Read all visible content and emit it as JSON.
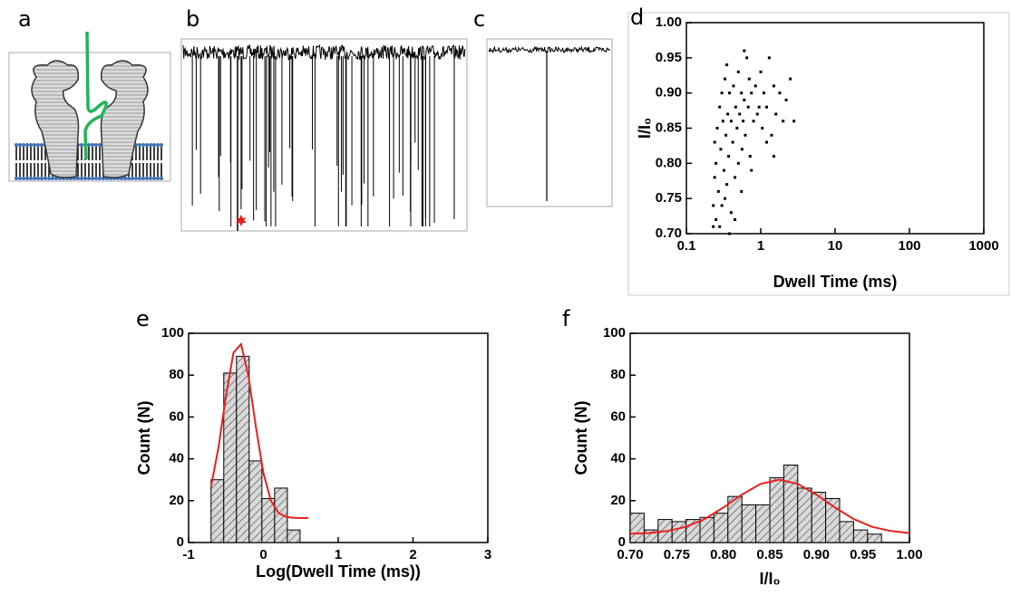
{
  "figure": {
    "labels": [
      "a",
      "b",
      "c",
      "d",
      "e",
      "f"
    ]
  },
  "chart_data": [
    {
      "type": "scatter",
      "xlabel": "Dwell Time (ms)",
      "ylabel": "I/I₀",
      "color": "#000000",
      "xlog": true,
      "xlim": [
        0.1,
        1000
      ],
      "xticks": [
        0.1,
        1,
        10,
        100,
        1000
      ],
      "ylim": [
        0.7,
        1.0
      ],
      "yticks": [
        {
          "value": 0.7,
          "label": "0.70"
        },
        {
          "value": 0.75,
          "label": "0.75"
        },
        {
          "value": 0.8,
          "label": "0.80"
        },
        {
          "value": 0.85,
          "label": "0.85"
        },
        {
          "value": 0.9,
          "label": "0.90"
        },
        {
          "value": 0.95,
          "label": "0.95"
        },
        {
          "value": 1.0,
          "label": "1.00"
        }
      ],
      "x": [
        0.23,
        0.23,
        0.24,
        0.24,
        0.25,
        0.25,
        0.26,
        0.27,
        0.28,
        0.28,
        0.29,
        0.3,
        0.3,
        0.31,
        0.32,
        0.33,
        0.34,
        0.35,
        0.35,
        0.36,
        0.37,
        0.38,
        0.4,
        0.4,
        0.42,
        0.43,
        0.45,
        0.46,
        0.48,
        0.5,
        0.5,
        0.52,
        0.55,
        0.56,
        0.58,
        0.6,
        0.62,
        0.65,
        0.68,
        0.7,
        0.72,
        0.75,
        0.8,
        0.85,
        0.9,
        0.95,
        1.0,
        1.05,
        1.1,
        1.2,
        1.3,
        1.4,
        1.5,
        1.6,
        1.8,
        2.0,
        2.2,
        2.5,
        2.8,
        0.33,
        0.38,
        0.45,
        0.55,
        0.6,
        0.75,
        1.2,
        1.5
      ],
      "values": [
        0.71,
        0.74,
        0.78,
        0.83,
        0.72,
        0.8,
        0.85,
        0.76,
        0.88,
        0.71,
        0.82,
        0.9,
        0.74,
        0.86,
        0.79,
        0.92,
        0.84,
        0.77,
        0.94,
        0.87,
        0.81,
        0.9,
        0.73,
        0.86,
        0.83,
        0.91,
        0.78,
        0.88,
        0.85,
        0.93,
        0.8,
        0.87,
        0.9,
        0.82,
        0.86,
        0.89,
        0.84,
        0.95,
        0.88,
        0.92,
        0.81,
        0.9,
        0.86,
        0.91,
        0.87,
        0.88,
        0.93,
        0.85,
        0.9,
        0.88,
        0.95,
        0.84,
        0.91,
        0.87,
        0.9,
        0.86,
        0.89,
        0.92,
        0.86,
        0.75,
        0.7,
        0.72,
        0.76,
        0.96,
        0.79,
        0.83,
        0.81
      ]
    },
    {
      "type": "histogram",
      "xlabel": "Log(Dwell Time (ms))",
      "ylabel": "Count (N)",
      "color": "#d9d9d9",
      "xlim": [
        -1,
        3
      ],
      "xticks": [
        -1,
        0,
        1,
        2,
        3
      ],
      "ylim": [
        0,
        100
      ],
      "yticks": [
        0,
        20,
        40,
        60,
        80,
        100
      ],
      "bins": [
        -0.7,
        -0.53,
        -0.36,
        -0.19,
        -0.02,
        0.15,
        0.32,
        0.49
      ],
      "values": [
        30,
        81,
        89,
        39,
        21,
        26,
        6
      ],
      "fit": {
        "color": "#e8201e",
        "x": [
          -0.7,
          -0.6,
          -0.5,
          -0.4,
          -0.3,
          -0.2,
          -0.1,
          0,
          0.1,
          0.2,
          0.3,
          0.4,
          0.5,
          0.6
        ],
        "values": [
          26.9,
          45.5,
          70.2,
          90.7,
          94.8,
          79.7,
          55.0,
          33.2,
          20.0,
          14.2,
          12.3,
          11.8,
          11.7,
          11.7
        ]
      }
    },
    {
      "type": "histogram",
      "xlabel": "I/I₀",
      "ylabel": "Count (N)",
      "color": "#d9d9d9",
      "xlim": [
        0.7,
        1.0
      ],
      "xticks": [
        {
          "value": 0.7,
          "label": "0.70"
        },
        {
          "value": 0.75,
          "label": "0.75"
        },
        {
          "value": 0.8,
          "label": "0.80"
        },
        {
          "value": 0.85,
          "label": "0.85"
        },
        {
          "value": 0.9,
          "label": "0.90"
        },
        {
          "value": 0.95,
          "label": "0.95"
        },
        {
          "value": 1.0,
          "label": "1.00"
        }
      ],
      "ylim": [
        0,
        100
      ],
      "yticks": [
        0,
        20,
        40,
        60,
        80,
        100
      ],
      "bins": [
        0.7,
        0.715,
        0.73,
        0.745,
        0.76,
        0.775,
        0.79,
        0.805,
        0.82,
        0.835,
        0.85,
        0.865,
        0.88,
        0.895,
        0.91,
        0.925,
        0.94,
        0.955,
        0.97
      ],
      "values": [
        14,
        6,
        11,
        10,
        11,
        12,
        14,
        22,
        18,
        18,
        31,
        37,
        26,
        24,
        21,
        10,
        6,
        4
      ],
      "fit": {
        "color": "#e8201e",
        "x": [
          0.7,
          0.72,
          0.74,
          0.76,
          0.78,
          0.8,
          0.82,
          0.84,
          0.86,
          0.88,
          0.9,
          0.92,
          0.94,
          0.96,
          0.98,
          1.0
        ],
        "values": [
          4.2,
          4.5,
          5.5,
          7.5,
          11.2,
          16.7,
          22.9,
          28.0,
          30,
          28.0,
          22.9,
          16.7,
          11.2,
          7.5,
          5.5,
          4.5
        ]
      }
    }
  ]
}
